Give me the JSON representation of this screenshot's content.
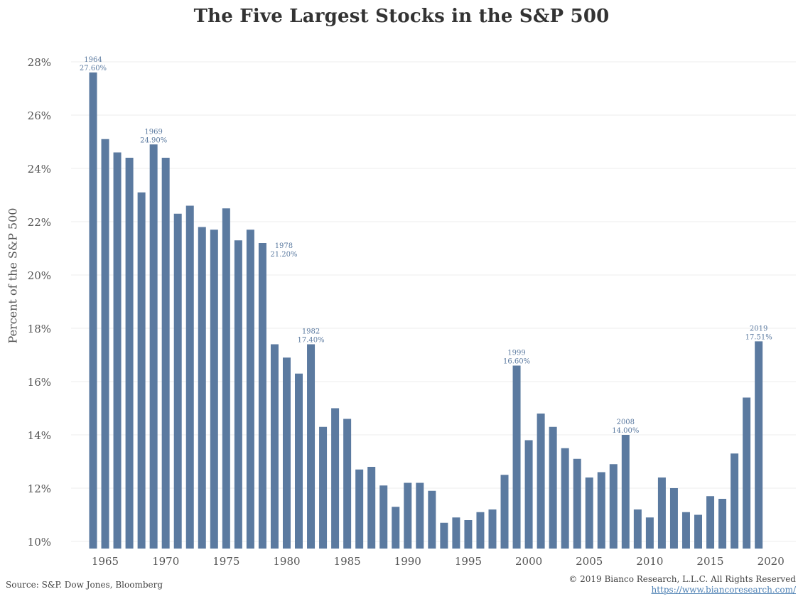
{
  "chart_data": {
    "type": "bar",
    "title": "The Five Largest Stocks in the S&P 500",
    "ylabel": "Percent of the S&P 500",
    "xlabel": "",
    "bar_color": "#5b7aa0",
    "label_color": "#5b7aa0",
    "grid": true,
    "ylim": [
      10,
      28
    ],
    "yticks": [
      "10%",
      "12%",
      "14%",
      "16%",
      "18%",
      "20%",
      "22%",
      "24%",
      "26%",
      "28%"
    ],
    "xticks": [
      "1965",
      "1970",
      "1975",
      "1980",
      "1985",
      "1990",
      "1995",
      "2000",
      "2005",
      "2010",
      "2015",
      "2020"
    ],
    "x": [
      1964,
      1965,
      1966,
      1967,
      1968,
      1969,
      1970,
      1971,
      1972,
      1973,
      1974,
      1975,
      1976,
      1977,
      1978,
      1979,
      1980,
      1981,
      1982,
      1983,
      1984,
      1985,
      1986,
      1987,
      1988,
      1989,
      1990,
      1991,
      1992,
      1993,
      1994,
      1995,
      1996,
      1997,
      1998,
      1999,
      2000,
      2001,
      2002,
      2003,
      2004,
      2005,
      2006,
      2007,
      2008,
      2009,
      2010,
      2011,
      2012,
      2013,
      2014,
      2015,
      2016,
      2017,
      2018,
      2019
    ],
    "values": [
      27.6,
      25.1,
      24.6,
      24.4,
      23.1,
      24.9,
      24.4,
      22.3,
      22.6,
      21.8,
      21.7,
      22.5,
      21.3,
      21.7,
      21.2,
      17.4,
      16.9,
      16.3,
      17.4,
      14.3,
      15.0,
      14.6,
      12.7,
      12.8,
      12.1,
      11.3,
      12.2,
      12.2,
      11.9,
      10.7,
      10.9,
      10.8,
      11.1,
      11.2,
      12.5,
      16.6,
      13.8,
      14.8,
      14.3,
      13.5,
      13.1,
      12.4,
      12.6,
      12.9,
      14.0,
      11.2,
      10.9,
      12.4,
      12.0,
      11.1,
      11.0,
      11.7,
      11.6,
      13.3,
      15.4,
      17.51
    ],
    "annotations": [
      {
        "year": 1964,
        "year_label": "1964",
        "value_label": "27.60%"
      },
      {
        "year": 1969,
        "year_label": "1969",
        "value_label": "24.90%"
      },
      {
        "year": 1978,
        "year_label": "1978",
        "value_label": "21.20%"
      },
      {
        "year": 1982,
        "year_label": "1982",
        "value_label": "17.40%"
      },
      {
        "year": 1999,
        "year_label": "1999",
        "value_label": "16.60%"
      },
      {
        "year": 2008,
        "year_label": "2008",
        "value_label": "14.00%"
      },
      {
        "year": 2019,
        "year_label": "2019",
        "value_label": "17.51%"
      }
    ]
  },
  "footer": {
    "source": "Source: S&P. Dow Jones, Bloomberg",
    "copyright": "© 2019 Bianco Research, L.L.C. All Rights Reserved",
    "url": "https://www.biancoresearch.com/"
  }
}
